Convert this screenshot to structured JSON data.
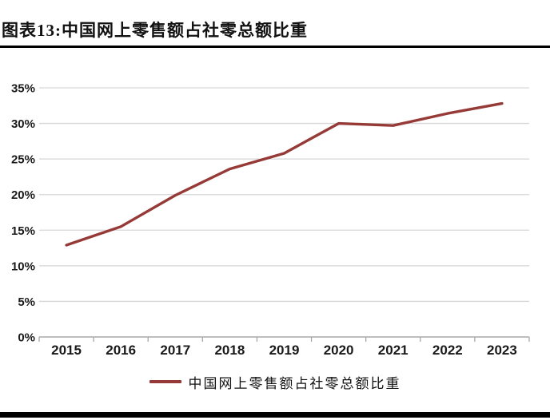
{
  "title": "图表13:中国网上零售额占社零总额比重",
  "legend": {
    "label": "中国网上零售额占社零总额比重"
  },
  "colors": {
    "line": "#963A37",
    "grid": "#D6D6D6",
    "axis": "#A9A9A9",
    "text": "#1A1A1A",
    "rule": "#000000",
    "background": "#FFFFFF"
  },
  "chart_data": {
    "type": "line",
    "categories": [
      "2015",
      "2016",
      "2017",
      "2018",
      "2019",
      "2020",
      "2021",
      "2022",
      "2023"
    ],
    "series": [
      {
        "name": "中国网上零售额占社零总额比重",
        "values": [
          12.9,
          15.5,
          19.9,
          23.6,
          25.8,
          30.0,
          29.7,
          31.4,
          32.8
        ]
      }
    ],
    "title": "图表13:中国网上零售额占社零总额比重",
    "xlabel": "",
    "ylabel": "",
    "ylim": [
      0,
      35
    ],
    "ytick_step": 5,
    "yticks": [
      "0%",
      "5%",
      "10%",
      "15%",
      "20%",
      "25%",
      "30%",
      "35%"
    ],
    "ytick_format": "percent",
    "grid": true,
    "legend_position": "bottom"
  }
}
